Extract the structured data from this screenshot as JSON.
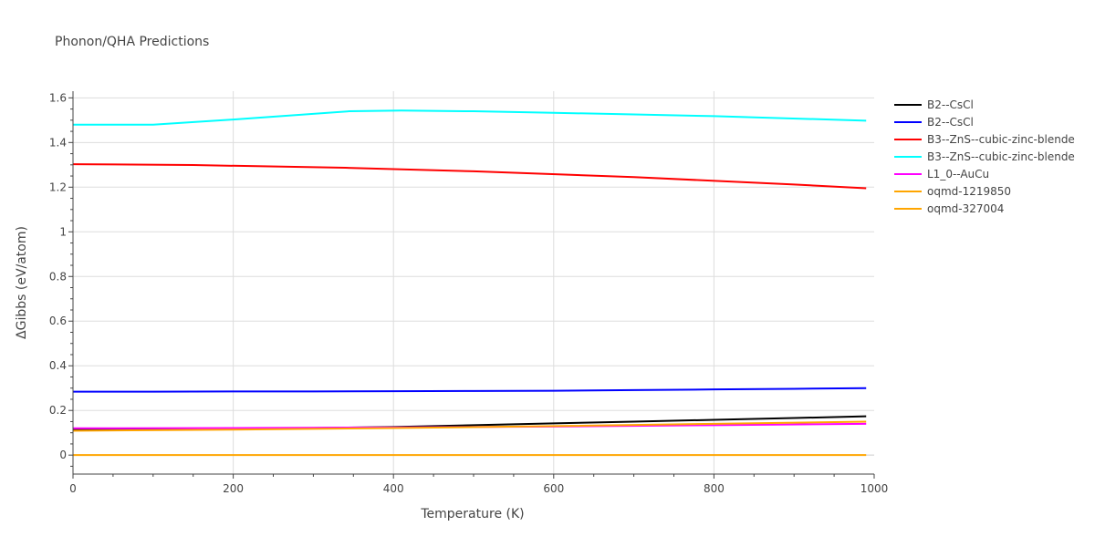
{
  "chart_data": {
    "type": "line",
    "title": "Phonon/QHA Predictions",
    "xlabel": "Temperature (K)",
    "ylabel": "ΔGibbs (eV/atom)",
    "xlim": [
      0,
      1000
    ],
    "ylim": [
      -0.085,
      1.63
    ],
    "xticks": [
      0,
      200,
      400,
      600,
      800,
      1000
    ],
    "xtick_labels": [
      "0",
      "200",
      "400",
      "600",
      "800",
      "1000"
    ],
    "yticks": [
      0,
      0.2,
      0.4,
      0.6,
      0.8,
      1,
      1.2,
      1.4,
      1.6
    ],
    "ytick_labels": [
      "0",
      "0.2",
      "0.4",
      "0.6",
      "0.8",
      "1",
      "1.2",
      "1.4",
      "1.6"
    ],
    "grid": true,
    "legend_position": "top-right",
    "series": [
      {
        "name": "B2--CsCl",
        "color": "#000000",
        "x": [
          0,
          100,
          200,
          300,
          400,
          500,
          600,
          700,
          800,
          900,
          990
        ],
        "y": [
          0.115,
          0.116,
          0.118,
          0.121,
          0.126,
          0.134,
          0.142,
          0.15,
          0.158,
          0.166,
          0.174
        ]
      },
      {
        "name": "B2--CsCl",
        "color": "#0000ff",
        "x": [
          0,
          100,
          200,
          300,
          400,
          500,
          600,
          700,
          800,
          900,
          990
        ],
        "y": [
          0.284,
          0.284,
          0.285,
          0.285,
          0.286,
          0.287,
          0.288,
          0.291,
          0.294,
          0.297,
          0.3
        ]
      },
      {
        "name": "B3--ZnS--cubic-zinc-blende",
        "color": "#ff0000",
        "x": [
          0,
          150,
          340,
          500,
          700,
          900,
          990
        ],
        "y": [
          1.303,
          1.299,
          1.287,
          1.271,
          1.245,
          1.212,
          1.195
        ]
      },
      {
        "name": "B3--ZnS--cubic-zinc-blende",
        "color": "#00ffff",
        "x": [
          0,
          100,
          200,
          345,
          410,
          500,
          600,
          700,
          800,
          990
        ],
        "y": [
          1.48,
          1.48,
          1.503,
          1.54,
          1.543,
          1.54,
          1.533,
          1.526,
          1.518,
          1.498
        ]
      },
      {
        "name": "L1_0--AuCu",
        "color": "#ff00ff",
        "x": [
          0,
          200,
          400,
          600,
          800,
          990
        ],
        "y": [
          0.12,
          0.121,
          0.124,
          0.128,
          0.134,
          0.14
        ]
      },
      {
        "name": "oqmd-1219850",
        "color": "#ffa500",
        "x": [
          0,
          200,
          400,
          600,
          800,
          990
        ],
        "y": [
          0.109,
          0.114,
          0.121,
          0.13,
          0.14,
          0.15
        ]
      },
      {
        "name": "oqmd-327004",
        "color": "#ffa500",
        "x": [
          0,
          990
        ],
        "y": [
          0,
          0
        ]
      }
    ]
  }
}
